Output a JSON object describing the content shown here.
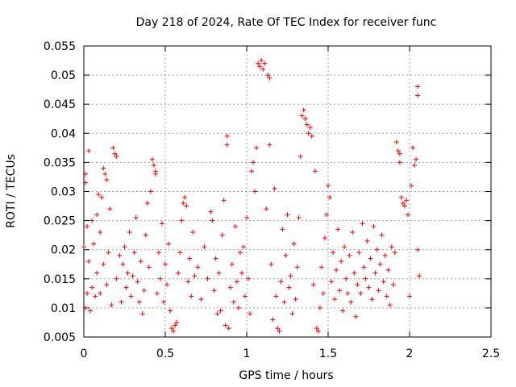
{
  "chart_data": {
    "type": "scatter",
    "title": "Day 218 of 2024, Rate Of TEC Index for receiver func",
    "xlabel": "GPS time / hours",
    "ylabel": "ROTI / TECUs",
    "xlim": [
      0,
      2.5
    ],
    "ylim": [
      0.005,
      0.055
    ],
    "xticks": [
      0,
      0.5,
      1,
      1.5,
      2,
      2.5
    ],
    "xtick_labels": [
      "0",
      "0.5",
      "1",
      "1.5",
      "2",
      "2.5"
    ],
    "yticks": [
      0.005,
      0.01,
      0.015,
      0.02,
      0.025,
      0.03,
      0.035,
      0.04,
      0.045,
      0.05,
      0.055
    ],
    "ytick_labels": [
      "0.005",
      "0.01",
      "0.015",
      "0.02",
      "0.025",
      "0.03",
      "0.035",
      "0.04",
      "0.045",
      "0.05",
      "0.055"
    ],
    "grid": true,
    "marker": "+",
    "color": "#ff0000",
    "series": [
      {
        "name": "ROTI",
        "points": [
          [
            0.0,
            0.0205
          ],
          [
            0.01,
            0.033
          ],
          [
            0.01,
            0.0315
          ],
          [
            0.01,
            0.01
          ],
          [
            0.02,
            0.024
          ],
          [
            0.02,
            0.0125
          ],
          [
            0.03,
            0.037
          ],
          [
            0.03,
            0.018
          ],
          [
            0.04,
            0.0095
          ],
          [
            0.05,
            0.025
          ],
          [
            0.05,
            0.0135
          ],
          [
            0.06,
            0.021
          ],
          [
            0.07,
            0.012
          ],
          [
            0.08,
            0.016
          ],
          [
            0.08,
            0.026
          ],
          [
            0.09,
            0.0295
          ],
          [
            0.1,
            0.023
          ],
          [
            0.1,
            0.0125
          ],
          [
            0.11,
            0.029
          ],
          [
            0.12,
            0.0175
          ],
          [
            0.12,
            0.034
          ],
          [
            0.13,
            0.033
          ],
          [
            0.14,
            0.014
          ],
          [
            0.14,
            0.032
          ],
          [
            0.15,
            0.0195
          ],
          [
            0.16,
            0.027
          ],
          [
            0.17,
            0.0105
          ],
          [
            0.18,
            0.0375
          ],
          [
            0.19,
            0.0365
          ],
          [
            0.2,
            0.036
          ],
          [
            0.2,
            0.015
          ],
          [
            0.22,
            0.019
          ],
          [
            0.23,
            0.011
          ],
          [
            0.24,
            0.0175
          ],
          [
            0.25,
            0.0205
          ],
          [
            0.26,
            0.0135
          ],
          [
            0.27,
            0.016
          ],
          [
            0.28,
            0.023
          ],
          [
            0.29,
            0.012
          ],
          [
            0.3,
            0.0155
          ],
          [
            0.31,
            0.0195
          ],
          [
            0.32,
            0.0255
          ],
          [
            0.33,
            0.0145
          ],
          [
            0.34,
            0.011
          ],
          [
            0.35,
            0.018
          ],
          [
            0.36,
            0.009
          ],
          [
            0.37,
            0.013
          ],
          [
            0.38,
            0.0225
          ],
          [
            0.39,
            0.028
          ],
          [
            0.4,
            0.017
          ],
          [
            0.41,
            0.03
          ],
          [
            0.42,
            0.0355
          ],
          [
            0.43,
            0.0345
          ],
          [
            0.44,
            0.0335
          ],
          [
            0.44,
            0.033
          ],
          [
            0.45,
            0.0125
          ],
          [
            0.46,
            0.0195
          ],
          [
            0.47,
            0.015
          ],
          [
            0.48,
            0.0245
          ],
          [
            0.49,
            0.011
          ],
          [
            0.5,
            0.0175
          ],
          [
            0.51,
            0.014
          ],
          [
            0.52,
            0.021
          ],
          [
            0.53,
            0.0095
          ],
          [
            0.54,
            0.0065
          ],
          [
            0.55,
            0.006
          ],
          [
            0.56,
            0.007
          ],
          [
            0.57,
            0.0075
          ],
          [
            0.58,
            0.016
          ],
          [
            0.59,
            0.0195
          ],
          [
            0.6,
            0.025
          ],
          [
            0.61,
            0.028
          ],
          [
            0.62,
            0.029
          ],
          [
            0.63,
            0.0275
          ],
          [
            0.64,
            0.0145
          ],
          [
            0.65,
            0.0185
          ],
          [
            0.66,
            0.012
          ],
          [
            0.67,
            0.023
          ],
          [
            0.68,
            0.0155
          ],
          [
            0.7,
            0.017
          ],
          [
            0.72,
            0.0115
          ],
          [
            0.74,
            0.0205
          ],
          [
            0.76,
            0.015
          ],
          [
            0.78,
            0.0265
          ],
          [
            0.79,
            0.025
          ],
          [
            0.8,
            0.013
          ],
          [
            0.81,
            0.0185
          ],
          [
            0.82,
            0.009
          ],
          [
            0.83,
            0.016
          ],
          [
            0.84,
            0.0095
          ],
          [
            0.85,
            0.0225
          ],
          [
            0.86,
            0.0285
          ],
          [
            0.87,
            0.007
          ],
          [
            0.88,
            0.0395
          ],
          [
            0.88,
            0.038
          ],
          [
            0.89,
            0.0065
          ],
          [
            0.9,
            0.0135
          ],
          [
            0.91,
            0.0175
          ],
          [
            0.92,
            0.011
          ],
          [
            0.93,
            0.024
          ],
          [
            0.94,
            0.0145
          ],
          [
            0.95,
            0.01
          ],
          [
            0.96,
            0.0195
          ],
          [
            0.97,
            0.016
          ],
          [
            0.98,
            0.0205
          ],
          [
            0.99,
            0.012
          ],
          [
            1.0,
            0.0255
          ],
          [
            1.01,
            0.015
          ],
          [
            1.02,
            0.009
          ],
          [
            1.03,
            0.0335
          ],
          [
            1.04,
            0.035
          ],
          [
            1.05,
            0.03
          ],
          [
            1.06,
            0.0375
          ],
          [
            1.07,
            0.052
          ],
          [
            1.08,
            0.0515
          ],
          [
            1.09,
            0.0525
          ],
          [
            1.1,
            0.051
          ],
          [
            1.11,
            0.052
          ],
          [
            1.12,
            0.027
          ],
          [
            1.13,
            0.05
          ],
          [
            1.14,
            0.038
          ],
          [
            1.14,
            0.0495
          ],
          [
            1.15,
            0.0175
          ],
          [
            1.16,
            0.008
          ],
          [
            1.17,
            0.0305
          ],
          [
            1.18,
            0.012
          ],
          [
            1.19,
            0.0065
          ],
          [
            1.2,
            0.006
          ],
          [
            1.21,
            0.0145
          ],
          [
            1.22,
            0.0235
          ],
          [
            1.23,
            0.011
          ],
          [
            1.24,
            0.019
          ],
          [
            1.25,
            0.026
          ],
          [
            1.26,
            0.0135
          ],
          [
            1.27,
            0.0155
          ],
          [
            1.28,
            0.009
          ],
          [
            1.29,
            0.021
          ],
          [
            1.3,
            0.0115
          ],
          [
            1.31,
            0.017
          ],
          [
            1.32,
            0.0255
          ],
          [
            1.33,
            0.036
          ],
          [
            1.34,
            0.043
          ],
          [
            1.35,
            0.044
          ],
          [
            1.36,
            0.0425
          ],
          [
            1.37,
            0.0415
          ],
          [
            1.38,
            0.04
          ],
          [
            1.39,
            0.041
          ],
          [
            1.4,
            0.0395
          ],
          [
            1.41,
            0.014
          ],
          [
            1.42,
            0.0335
          ],
          [
            1.43,
            0.0065
          ],
          [
            1.44,
            0.006
          ],
          [
            1.45,
            0.01
          ],
          [
            1.46,
            0.017
          ],
          [
            1.47,
            0.0125
          ],
          [
            1.48,
            0.022
          ],
          [
            1.49,
            0.026
          ],
          [
            1.5,
            0.031
          ],
          [
            1.51,
            0.029
          ],
          [
            1.52,
            0.0145
          ],
          [
            1.53,
            0.0195
          ],
          [
            1.54,
            0.0115
          ],
          [
            1.55,
            0.0165
          ],
          [
            1.56,
            0.0235
          ],
          [
            1.57,
            0.013
          ],
          [
            1.58,
            0.018
          ],
          [
            1.59,
            0.0095
          ],
          [
            1.6,
            0.0205
          ],
          [
            1.61,
            0.015
          ],
          [
            1.62,
            0.0125
          ],
          [
            1.63,
            0.019
          ],
          [
            1.64,
            0.011
          ],
          [
            1.65,
            0.023
          ],
          [
            1.66,
            0.016
          ],
          [
            1.67,
            0.0085
          ],
          [
            1.68,
            0.014
          ],
          [
            1.69,
            0.0195
          ],
          [
            1.7,
            0.0125
          ],
          [
            1.71,
            0.0245
          ],
          [
            1.72,
            0.017
          ],
          [
            1.73,
            0.015
          ],
          [
            1.74,
            0.0215
          ],
          [
            1.75,
            0.0135
          ],
          [
            1.76,
            0.0185
          ],
          [
            1.77,
            0.0115
          ],
          [
            1.78,
            0.024
          ],
          [
            1.79,
            0.016
          ],
          [
            1.8,
            0.02
          ],
          [
            1.81,
            0.013
          ],
          [
            1.82,
            0.0175
          ],
          [
            1.83,
            0.0225
          ],
          [
            1.84,
            0.0145
          ],
          [
            1.85,
            0.019
          ],
          [
            1.86,
            0.012
          ],
          [
            1.87,
            0.0165
          ],
          [
            1.88,
            0.0105
          ],
          [
            1.89,
            0.0205
          ],
          [
            1.9,
            0.014
          ],
          [
            1.91,
            0.0195
          ],
          [
            1.92,
            0.0385
          ],
          [
            1.93,
            0.037
          ],
          [
            1.94,
            0.0365
          ],
          [
            1.94,
            0.035
          ],
          [
            1.95,
            0.029
          ],
          [
            1.96,
            0.028
          ],
          [
            1.97,
            0.0275
          ],
          [
            1.98,
            0.0285
          ],
          [
            1.99,
            0.026
          ],
          [
            2.0,
            0.012
          ],
          [
            2.01,
            0.031
          ],
          [
            2.02,
            0.0375
          ],
          [
            2.03,
            0.0345
          ],
          [
            2.04,
            0.0355
          ],
          [
            2.05,
            0.048
          ],
          [
            2.05,
            0.0465
          ],
          [
            2.05,
            0.02
          ],
          [
            2.06,
            0.0155
          ]
        ]
      }
    ]
  }
}
